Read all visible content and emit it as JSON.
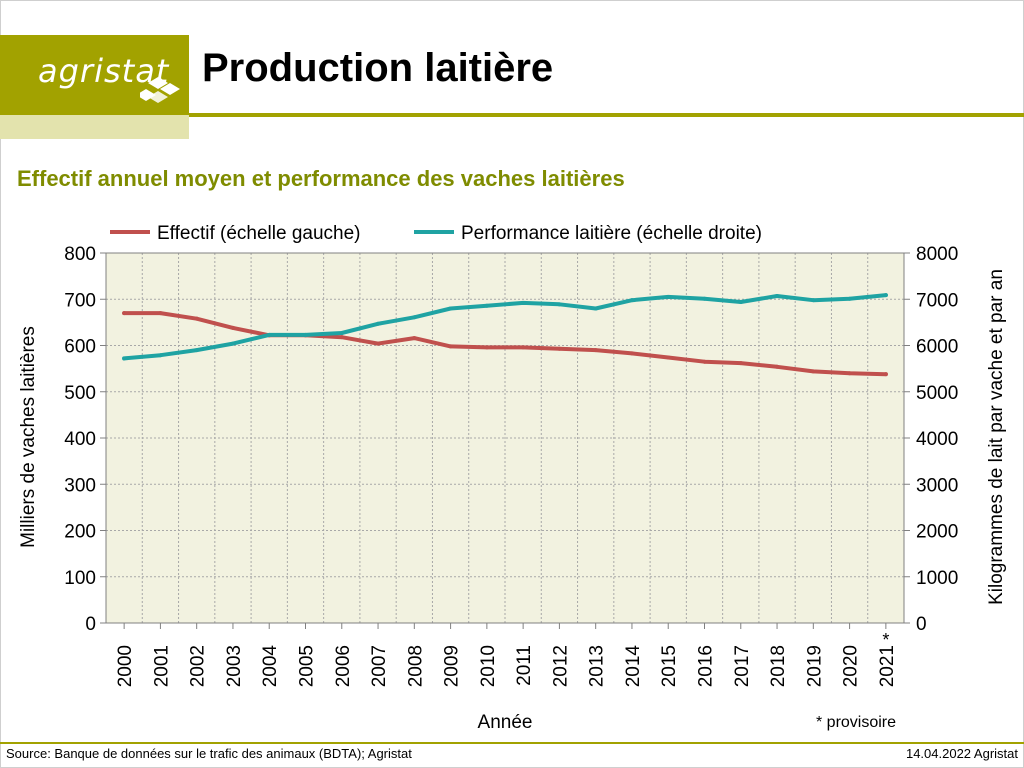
{
  "header": {
    "logo_text": "agristat",
    "title": "Production laitière"
  },
  "footer": {
    "source": "Source: Banque de données sur le trafic des animaux (BDTA); Agristat",
    "date": "14.04.2022 Agristat"
  },
  "chart_data": {
    "type": "line",
    "title": "Effectif annuel moyen et performance des vaches laitières",
    "xlabel": "Année",
    "ylabel_left": "Milliers de vaches laitières",
    "ylabel_right": "Kilogrammes de lait par vache et par an",
    "note": "* provisoire",
    "x": [
      "2000",
      "2001",
      "2002",
      "2003",
      "2004",
      "2005",
      "2006",
      "2007",
      "2008",
      "2009",
      "2010",
      "2011",
      "2012",
      "2013",
      "2014",
      "2015",
      "2016",
      "2017",
      "2018",
      "2019",
      "2020",
      "2021"
    ],
    "x_marker": "*",
    "ylim_left": [
      0,
      800
    ],
    "ylim_right": [
      0,
      8000
    ],
    "yticks_left": [
      0,
      100,
      200,
      300,
      400,
      500,
      600,
      700,
      800
    ],
    "yticks_right": [
      0,
      1000,
      2000,
      3000,
      4000,
      5000,
      6000,
      7000,
      8000
    ],
    "grid": true,
    "legend_position": "top",
    "series": [
      {
        "name": "Effectif (échelle gauche)",
        "axis": "left",
        "color": "#c0504d",
        "values": [
          670,
          670,
          658,
          638,
          622,
          622,
          618,
          604,
          616,
          598,
          596,
          596,
          593,
          590,
          583,
          574,
          565,
          562,
          554,
          544,
          540,
          538
        ]
      },
      {
        "name": "Performance laitière (échelle droite)",
        "axis": "right",
        "color": "#1fa3a3",
        "values": [
          5720,
          5790,
          5900,
          6040,
          6230,
          6230,
          6270,
          6470,
          6610,
          6800,
          6860,
          6920,
          6890,
          6800,
          6980,
          7050,
          7010,
          6940,
          7070,
          6980,
          7010,
          7090
        ]
      }
    ]
  },
  "colors": {
    "brand": "#a2a200",
    "brand_light": "#e3e3ad",
    "subtitle": "#7f8c00",
    "plot_bg": "#f2f2e0"
  }
}
